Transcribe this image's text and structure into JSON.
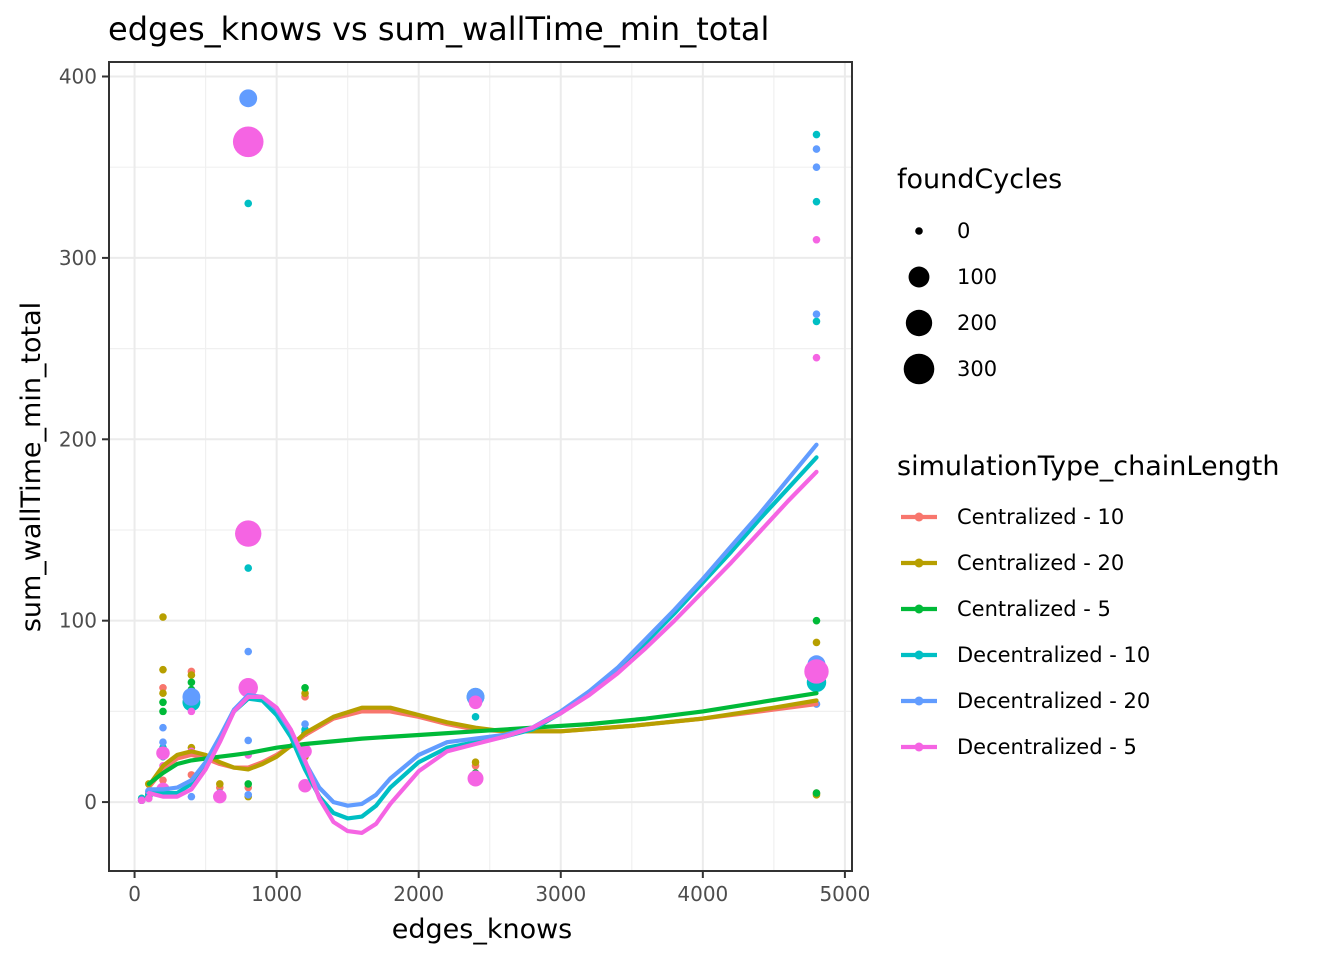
{
  "chart_data": {
    "type": "scatter",
    "title": "edges_knows  vs  sum_wallTime_min_total",
    "xlabel": "edges_knows",
    "ylabel": "sum_wallTime_min_total",
    "xlim": [
      -180,
      5050
    ],
    "ylim": [
      -38,
      408
    ],
    "xticks": [
      0,
      1000,
      2000,
      3000,
      4000,
      5000
    ],
    "xtick_labels": [
      "0",
      "1000",
      "2000",
      "3000",
      "4000",
      "5000"
    ],
    "yticks": [
      0,
      100,
      200,
      300,
      400
    ],
    "ytick_labels": [
      "0",
      "100",
      "200",
      "300",
      "400"
    ],
    "grid": true,
    "theme": "bw",
    "size_legend": {
      "title": "foundCycles",
      "entries": [
        {
          "label": "0",
          "value": 0
        },
        {
          "label": "100",
          "value": 100
        },
        {
          "label": "200",
          "value": 200
        },
        {
          "label": "300",
          "value": 300
        }
      ]
    },
    "color_legend": {
      "title": "simulationType_chainLength",
      "placement": "right"
    },
    "series": [
      {
        "name": "Centralized - 10",
        "color": "#F8766D",
        "points": [
          [
            50,
            1,
            0
          ],
          [
            100,
            5,
            0
          ],
          [
            200,
            63,
            0
          ],
          [
            200,
            12,
            0
          ],
          [
            400,
            72,
            0
          ],
          [
            400,
            15,
            0
          ],
          [
            600,
            8,
            0
          ],
          [
            800,
            62,
            0
          ],
          [
            800,
            8,
            0
          ],
          [
            1200,
            58,
            0
          ],
          [
            1200,
            28,
            0
          ],
          [
            2400,
            60,
            0
          ],
          [
            2400,
            20,
            0
          ],
          [
            4800,
            66,
            0
          ],
          [
            4800,
            5,
            0
          ]
        ],
        "smooth": [
          [
            100,
            8
          ],
          [
            200,
            18
          ],
          [
            300,
            24
          ],
          [
            400,
            26
          ],
          [
            500,
            24
          ],
          [
            600,
            21
          ],
          [
            700,
            19
          ],
          [
            800,
            19
          ],
          [
            900,
            22
          ],
          [
            1000,
            26
          ],
          [
            1100,
            31
          ],
          [
            1200,
            37
          ],
          [
            1400,
            46
          ],
          [
            1600,
            50
          ],
          [
            1800,
            50
          ],
          [
            2000,
            47
          ],
          [
            2200,
            43
          ],
          [
            2400,
            40
          ],
          [
            2600,
            39
          ],
          [
            3000,
            39
          ],
          [
            3500,
            42
          ],
          [
            4000,
            46
          ],
          [
            4500,
            51
          ],
          [
            4800,
            54
          ]
        ]
      },
      {
        "name": "Centralized - 20",
        "color": "#B79F00",
        "points": [
          [
            50,
            2,
            0
          ],
          [
            100,
            10,
            0
          ],
          [
            200,
            102,
            0
          ],
          [
            200,
            73,
            0
          ],
          [
            200,
            60,
            0
          ],
          [
            400,
            70,
            0
          ],
          [
            400,
            30,
            0
          ],
          [
            600,
            10,
            0
          ],
          [
            800,
            60,
            0
          ],
          [
            800,
            3,
            0
          ],
          [
            1200,
            60,
            0
          ],
          [
            1200,
            25,
            0
          ],
          [
            2400,
            58,
            0
          ],
          [
            2400,
            22,
            0
          ],
          [
            4800,
            88,
            0
          ],
          [
            4800,
            4,
            0
          ]
        ],
        "smooth": [
          [
            100,
            9
          ],
          [
            200,
            20
          ],
          [
            300,
            26
          ],
          [
            400,
            28
          ],
          [
            500,
            26
          ],
          [
            600,
            22
          ],
          [
            700,
            19
          ],
          [
            800,
            18
          ],
          [
            900,
            21
          ],
          [
            1000,
            25
          ],
          [
            1100,
            31
          ],
          [
            1200,
            38
          ],
          [
            1400,
            47
          ],
          [
            1600,
            52
          ],
          [
            1800,
            52
          ],
          [
            2000,
            48
          ],
          [
            2200,
            44
          ],
          [
            2400,
            41
          ],
          [
            2600,
            39
          ],
          [
            3000,
            39
          ],
          [
            3500,
            42
          ],
          [
            4000,
            46
          ],
          [
            4500,
            52
          ],
          [
            4800,
            56
          ]
        ]
      },
      {
        "name": "Centralized - 5",
        "color": "#00BA38",
        "points": [
          [
            50,
            1,
            0
          ],
          [
            100,
            3,
            0
          ],
          [
            200,
            55,
            0
          ],
          [
            200,
            50,
            0
          ],
          [
            400,
            66,
            0
          ],
          [
            400,
            62,
            0
          ],
          [
            600,
            5,
            0
          ],
          [
            800,
            65,
            0
          ],
          [
            800,
            10,
            0
          ],
          [
            1200,
            63,
            0
          ],
          [
            1200,
            38,
            0
          ],
          [
            2400,
            60,
            0
          ],
          [
            2400,
            16,
            0
          ],
          [
            4800,
            100,
            0
          ],
          [
            4800,
            5,
            0
          ]
        ],
        "smooth": [
          [
            100,
            10
          ],
          [
            200,
            16
          ],
          [
            300,
            21
          ],
          [
            400,
            23
          ],
          [
            500,
            24
          ],
          [
            600,
            25
          ],
          [
            700,
            26
          ],
          [
            800,
            27
          ],
          [
            1000,
            30
          ],
          [
            1200,
            32
          ],
          [
            1600,
            35
          ],
          [
            2000,
            37
          ],
          [
            2400,
            39
          ],
          [
            2800,
            41
          ],
          [
            3200,
            43
          ],
          [
            3600,
            46
          ],
          [
            4000,
            50
          ],
          [
            4400,
            55
          ],
          [
            4800,
            60
          ]
        ]
      },
      {
        "name": "Decentralized - 10",
        "color": "#00BFC4",
        "points": [
          [
            50,
            2,
            0
          ],
          [
            100,
            4,
            0
          ],
          [
            200,
            30,
            0
          ],
          [
            200,
            25,
            0
          ],
          [
            400,
            55,
            60
          ],
          [
            600,
            4,
            0
          ],
          [
            800,
            330,
            0
          ],
          [
            800,
            129,
            0
          ],
          [
            800,
            65,
            0
          ],
          [
            1200,
            40,
            0
          ],
          [
            2400,
            58,
            60
          ],
          [
            2400,
            47,
            0
          ],
          [
            4800,
            368,
            0
          ],
          [
            4800,
            331,
            0
          ],
          [
            4800,
            265,
            0
          ],
          [
            4800,
            66,
            80
          ]
        ],
        "smooth": [
          [
            100,
            6
          ],
          [
            200,
            5
          ],
          [
            300,
            5
          ],
          [
            400,
            10
          ],
          [
            500,
            20
          ],
          [
            600,
            35
          ],
          [
            700,
            50
          ],
          [
            800,
            57
          ],
          [
            900,
            56
          ],
          [
            1000,
            48
          ],
          [
            1100,
            36
          ],
          [
            1200,
            18
          ],
          [
            1300,
            3
          ],
          [
            1400,
            -6
          ],
          [
            1500,
            -9
          ],
          [
            1600,
            -8
          ],
          [
            1700,
            -2
          ],
          [
            1800,
            8
          ],
          [
            2000,
            22
          ],
          [
            2200,
            30
          ],
          [
            2400,
            33
          ],
          [
            2600,
            36
          ],
          [
            2800,
            40
          ],
          [
            3000,
            49
          ],
          [
            3200,
            60
          ],
          [
            3400,
            73
          ],
          [
            3600,
            88
          ],
          [
            3800,
            104
          ],
          [
            4000,
            121
          ],
          [
            4200,
            138
          ],
          [
            4400,
            156
          ],
          [
            4600,
            173
          ],
          [
            4800,
            190
          ]
        ]
      },
      {
        "name": "Decentralized - 20",
        "color": "#619CFF",
        "points": [
          [
            50,
            1,
            0
          ],
          [
            100,
            6,
            0
          ],
          [
            200,
            41,
            0
          ],
          [
            200,
            33,
            0
          ],
          [
            400,
            58,
            60
          ],
          [
            400,
            3,
            0
          ],
          [
            600,
            5,
            0
          ],
          [
            800,
            388,
            60
          ],
          [
            800,
            83,
            0
          ],
          [
            800,
            34,
            0
          ],
          [
            800,
            4,
            0
          ],
          [
            1200,
            43,
            0
          ],
          [
            2400,
            58,
            60
          ],
          [
            4800,
            360,
            0
          ],
          [
            4800,
            350,
            0
          ],
          [
            4800,
            269,
            0
          ],
          [
            4800,
            76,
            60
          ],
          [
            4800,
            54,
            0
          ]
        ],
        "smooth": [
          [
            100,
            7
          ],
          [
            200,
            7
          ],
          [
            300,
            8
          ],
          [
            400,
            12
          ],
          [
            500,
            22
          ],
          [
            600,
            36
          ],
          [
            700,
            51
          ],
          [
            800,
            59
          ],
          [
            900,
            58
          ],
          [
            1000,
            51
          ],
          [
            1100,
            39
          ],
          [
            1200,
            22
          ],
          [
            1300,
            8
          ],
          [
            1400,
            0
          ],
          [
            1500,
            -2
          ],
          [
            1600,
            -1
          ],
          [
            1700,
            4
          ],
          [
            1800,
            13
          ],
          [
            2000,
            26
          ],
          [
            2200,
            33
          ],
          [
            2400,
            35
          ],
          [
            2600,
            37
          ],
          [
            2800,
            41
          ],
          [
            3000,
            50
          ],
          [
            3200,
            61
          ],
          [
            3400,
            74
          ],
          [
            3600,
            90
          ],
          [
            3800,
            106
          ],
          [
            4000,
            123
          ],
          [
            4200,
            141
          ],
          [
            4400,
            159
          ],
          [
            4600,
            178
          ],
          [
            4800,
            197
          ]
        ]
      },
      {
        "name": "Decentralized - 5",
        "color": "#F564E3",
        "points": [
          [
            50,
            1,
            0
          ],
          [
            100,
            2,
            0
          ],
          [
            200,
            27,
            20
          ],
          [
            200,
            20,
            0
          ],
          [
            200,
            7,
            20
          ],
          [
            400,
            50,
            0
          ],
          [
            400,
            28,
            0
          ],
          [
            600,
            3,
            20
          ],
          [
            800,
            364,
            300
          ],
          [
            800,
            148,
            200
          ],
          [
            800,
            63,
            80
          ],
          [
            800,
            26,
            0
          ],
          [
            1200,
            28,
            20
          ],
          [
            1200,
            9,
            20
          ],
          [
            2400,
            55,
            20
          ],
          [
            2400,
            13,
            40
          ],
          [
            4800,
            310,
            0
          ],
          [
            4800,
            245,
            0
          ],
          [
            4800,
            72,
            160
          ]
        ],
        "smooth": [
          [
            100,
            5
          ],
          [
            200,
            3
          ],
          [
            300,
            3
          ],
          [
            400,
            7
          ],
          [
            500,
            18
          ],
          [
            600,
            33
          ],
          [
            700,
            50
          ],
          [
            800,
            58
          ],
          [
            900,
            58
          ],
          [
            1000,
            52
          ],
          [
            1100,
            40
          ],
          [
            1200,
            23
          ],
          [
            1300,
            2
          ],
          [
            1400,
            -11
          ],
          [
            1500,
            -16
          ],
          [
            1600,
            -17
          ],
          [
            1700,
            -12
          ],
          [
            1800,
            -1
          ],
          [
            2000,
            17
          ],
          [
            2200,
            28
          ],
          [
            2400,
            32
          ],
          [
            2600,
            36
          ],
          [
            2800,
            41
          ],
          [
            3000,
            49
          ],
          [
            3200,
            59
          ],
          [
            3400,
            71
          ],
          [
            3600,
            85
          ],
          [
            3800,
            100
          ],
          [
            4000,
            116
          ],
          [
            4200,
            132
          ],
          [
            4400,
            149
          ],
          [
            4600,
            166
          ],
          [
            4800,
            182
          ]
        ]
      }
    ]
  }
}
